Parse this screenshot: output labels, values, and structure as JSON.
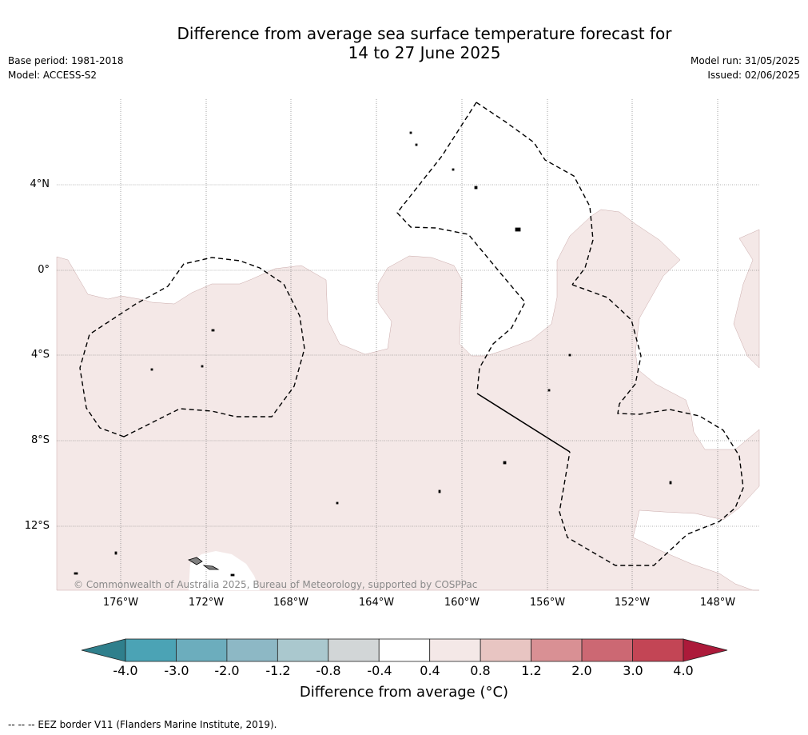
{
  "title": {
    "line1": "Difference from average sea surface temperature forecast for",
    "line2": "14 to 27 June 2025"
  },
  "meta": {
    "base_period": "Base period: 1981-2018",
    "model": "Model: ACCESS-S2",
    "model_run": "Model run: 31/05/2025",
    "issued": "Issued: 02/06/2025"
  },
  "map": {
    "copyright": "© Commonwealth of Australia 2025, Bureau of Meteorology, supported by COSPPac",
    "lon_labels": [
      "176°W",
      "172°W",
      "168°W",
      "164°W",
      "160°W",
      "156°W",
      "152°W",
      "148°W"
    ],
    "lat_labels": [
      "4°N",
      "0°",
      "4°S",
      "8°S",
      "12°S"
    ],
    "anomaly_fill_color": "#f4e8e7",
    "land_color": "#808080",
    "eez_style": "dashed black"
  },
  "colorbar": {
    "ticks": [
      "-4.0",
      "-3.0",
      "-2.0",
      "-1.2",
      "-0.8",
      "-0.4",
      "0.4",
      "0.8",
      "1.2",
      "2.0",
      "3.0",
      "4.0"
    ],
    "colors": [
      "#2f7f8c",
      "#4ba3b5",
      "#6cadbd",
      "#8db8c5",
      "#aac8ce",
      "#d2d6d7",
      "#ffffff",
      "#f4e8e7",
      "#e8c5c2",
      "#d99094",
      "#cc6873",
      "#c34555",
      "#ac1a3a"
    ],
    "title": "Difference from average (°C)"
  },
  "footnote": "--  --  -- EEZ border V11 (Flanders Marine Institute, 2019)."
}
